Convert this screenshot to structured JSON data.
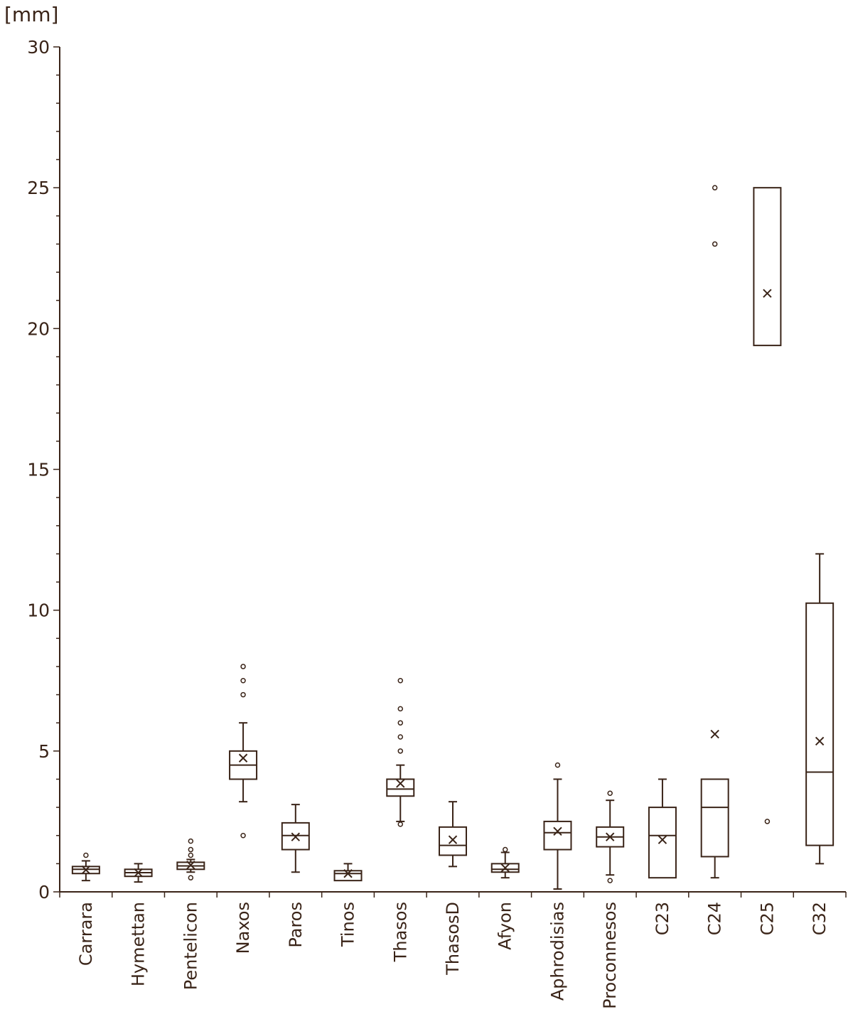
{
  "chart_data": {
    "type": "box",
    "ylabel": "[mm]",
    "ylim": [
      0,
      30
    ],
    "yticks": [
      "0",
      "5",
      "10",
      "15",
      "20",
      "25",
      "30"
    ],
    "minor_tick_step": 1,
    "grid": false,
    "legend": "none",
    "colors": {
      "ink": "#3a2418",
      "background": "#ffffff"
    },
    "categories": [
      "Carrara",
      "Hymettan",
      "Pentelicon",
      "Naxos",
      "Paros",
      "Tinos",
      "Thasos",
      "ThasosD",
      "Afyon",
      "Aphrodisias",
      "Proconnesos",
      "C23",
      "C24",
      "C25",
      "C32"
    ],
    "boxes": [
      {
        "category": "Carrara",
        "min": 0.4,
        "q1": 0.65,
        "median": 0.8,
        "q3": 0.9,
        "max": 1.1,
        "mean": 0.78,
        "outliers": [
          1.3
        ]
      },
      {
        "category": "Hymettan",
        "min": 0.35,
        "q1": 0.55,
        "median": 0.68,
        "q3": 0.8,
        "max": 1.0,
        "mean": 0.68,
        "outliers": []
      },
      {
        "category": "Pentelicon",
        "min": 0.7,
        "q1": 0.8,
        "median": 0.92,
        "q3": 1.05,
        "max": 1.15,
        "mean": 0.95,
        "outliers": [
          0.5,
          1.3,
          1.5,
          1.8
        ]
      },
      {
        "category": "Naxos",
        "min": 3.2,
        "q1": 4.0,
        "median": 4.5,
        "q3": 5.0,
        "max": 6.0,
        "mean": 4.75,
        "outliers": [
          2.0,
          7.0,
          7.5,
          8.0
        ]
      },
      {
        "category": "Paros",
        "min": 0.7,
        "q1": 1.5,
        "median": 2.0,
        "q3": 2.45,
        "max": 3.1,
        "mean": 1.95,
        "outliers": []
      },
      {
        "category": "Tinos",
        "min": 0.4,
        "q1": 0.4,
        "median": 0.65,
        "q3": 0.75,
        "max": 1.0,
        "mean": 0.65,
        "outliers": []
      },
      {
        "category": "Thasos",
        "min": 2.5,
        "q1": 3.4,
        "median": 3.65,
        "q3": 4.0,
        "max": 4.5,
        "mean": 3.85,
        "outliers": [
          2.4,
          5.0,
          5.5,
          6.0,
          6.5,
          7.5
        ]
      },
      {
        "category": "ThasosD",
        "min": 0.9,
        "q1": 1.3,
        "median": 1.65,
        "q3": 2.3,
        "max": 3.2,
        "mean": 1.85,
        "outliers": []
      },
      {
        "category": "Afyon",
        "min": 0.5,
        "q1": 0.7,
        "median": 0.8,
        "q3": 1.0,
        "max": 1.4,
        "mean": 0.85,
        "outliers": [
          1.5
        ]
      },
      {
        "category": "Aphrodisias",
        "min": 0.1,
        "q1": 1.5,
        "median": 2.1,
        "q3": 2.5,
        "max": 4.0,
        "mean": 2.15,
        "outliers": [
          4.5
        ]
      },
      {
        "category": "Proconnesos",
        "min": 0.6,
        "q1": 1.6,
        "median": 1.95,
        "q3": 2.3,
        "max": 3.25,
        "mean": 1.95,
        "outliers": [
          0.4,
          3.5
        ]
      },
      {
        "category": "C23",
        "min": 0.5,
        "q1": 0.5,
        "median": 2.0,
        "q3": 3.0,
        "max": 4.0,
        "mean": 1.85,
        "outliers": []
      },
      {
        "category": "C24",
        "min": 0.5,
        "q1": 1.25,
        "median": 3.0,
        "q3": 4.0,
        "max": 4.0,
        "mean": 5.6,
        "outliers": [
          23.0,
          25.0
        ]
      },
      {
        "category": "C25",
        "min": 19.4,
        "q1": 19.4,
        "median": 25.0,
        "q3": 25.0,
        "max": 25.0,
        "mean": 21.25,
        "outliers": [
          2.5
        ]
      },
      {
        "category": "C32",
        "min": 1.0,
        "q1": 1.65,
        "median": 4.25,
        "q3": 10.25,
        "max": 12.0,
        "mean": 5.35,
        "outliers": []
      }
    ]
  }
}
